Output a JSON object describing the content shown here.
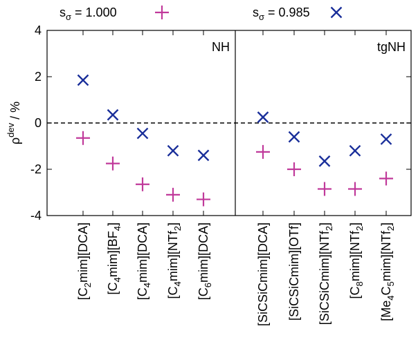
{
  "chart_data": {
    "type": "scatter",
    "ylabel": "ρdev / %",
    "ylabel_main": "ρ",
    "ylabel_sup": "dev",
    "ylabel_unit": " / %",
    "ylim": [
      -4,
      4
    ],
    "yticks": [
      -4,
      -2,
      0,
      2,
      4
    ],
    "ytick_labels": [
      "-4",
      "-2",
      "0",
      "2",
      "4"
    ],
    "reference_line": 0,
    "legend_position": "top",
    "panels": [
      "NH",
      "tgNH"
    ],
    "categories": [
      {
        "base": "[C",
        "sub": "2",
        "rest": "mim][DCA]",
        "sub2": "",
        "rest2": ""
      },
      {
        "base": "[C",
        "sub": "4",
        "rest": "mim][BF",
        "sub2": "4",
        "rest2": "]"
      },
      {
        "base": "[C",
        "sub": "4",
        "rest": "mim][DCA]",
        "sub2": "",
        "rest2": ""
      },
      {
        "base": "[C",
        "sub": "4",
        "rest": "mim][NTf",
        "sub2": "2",
        "rest2": "]"
      },
      {
        "base": "[C",
        "sub": "6",
        "rest": "mim][DCA]",
        "sub2": "",
        "rest2": ""
      },
      {
        "base": "[SiCSiCmim][DCA]",
        "sub": "",
        "rest": "",
        "sub2": "",
        "rest2": ""
      },
      {
        "base": "[SiCSiCmim][OTf]",
        "sub": "",
        "rest": "",
        "sub2": "",
        "rest2": ""
      },
      {
        "base": "[SiCSiCmim][NTf",
        "sub": "2",
        "rest": "]",
        "sub2": "",
        "rest2": ""
      },
      {
        "base": "[C",
        "sub": "8",
        "rest": "mim][NTf",
        "sub2": "2",
        "rest2": "]"
      },
      {
        "base": "[Me",
        "sub": "4",
        "rest": "C",
        "sub2": "5",
        "rest2": "mim][NTf",
        "sub3": "2",
        "rest3": "]"
      }
    ],
    "series": [
      {
        "name": "sσ = 1.000",
        "label_main": "s",
        "label_sub": "σ",
        "label_rest": " = 1.000",
        "marker": "plus",
        "color": "#c0399a",
        "values": [
          -0.65,
          -1.75,
          -2.65,
          -3.1,
          -3.3,
          -1.25,
          -2.0,
          -2.85,
          -2.85,
          -2.4
        ]
      },
      {
        "name": "sσ = 0.985",
        "label_main": "s",
        "label_sub": "σ",
        "label_rest": " = 0.985",
        "marker": "cross",
        "color": "#1a2f9a",
        "values": [
          1.85,
          0.35,
          -0.45,
          -1.2,
          -1.4,
          0.25,
          -0.6,
          -1.65,
          -1.2,
          -0.7
        ]
      }
    ]
  }
}
